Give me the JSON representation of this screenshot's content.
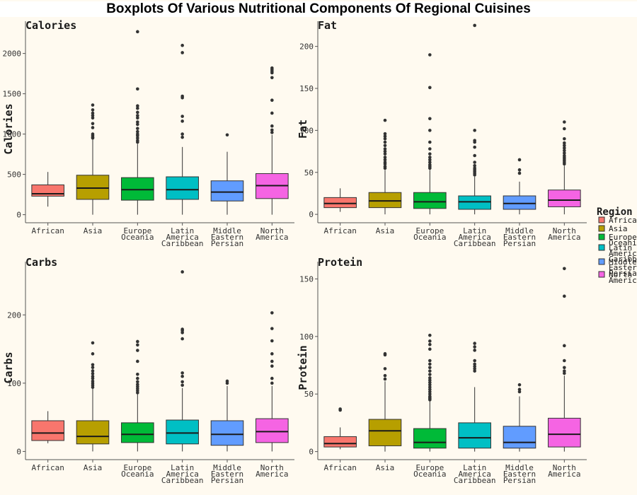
{
  "title": "Boxplots Of Various Nutritional Components Of Regional Cuisines",
  "legend": {
    "title": "Region",
    "placement": "right",
    "items": [
      {
        "label": [
          "African"
        ],
        "color": "#F8766D"
      },
      {
        "label": [
          "Asia"
        ],
        "color": "#B79F00"
      },
      {
        "label": [
          "Europe",
          "Oceania"
        ],
        "color": "#00BA38"
      },
      {
        "label": [
          "Latin",
          "America",
          "Caribbean"
        ],
        "color": "#00BFC4"
      },
      {
        "label": [
          "Middle",
          "Eastern",
          "Persian"
        ],
        "color": "#619CFF"
      },
      {
        "label": [
          "North",
          "America"
        ],
        "color": "#F564E3"
      }
    ]
  },
  "chart_data": [
    {
      "type": "boxplot",
      "title": "Calories",
      "ylabel": "Calories",
      "ylim": [
        -100,
        2400
      ],
      "yticks": [
        0,
        500,
        1000,
        1500,
        2000
      ],
      "categories": [
        [
          "African"
        ],
        [
          "Asia"
        ],
        [
          "Europe",
          "Oceania"
        ],
        [
          "Latin",
          "America",
          "Caribbean"
        ],
        [
          "Middle",
          "Eastern",
          "Persian"
        ],
        [
          "North",
          "America"
        ]
      ],
      "boxes": [
        {
          "min": 100,
          "q1": 230,
          "median": 260,
          "q3": 370,
          "max": 530,
          "outliers": []
        },
        {
          "min": 0,
          "q1": 190,
          "median": 330,
          "q3": 490,
          "max": 930,
          "outliers": [
            950,
            960,
            980,
            1000,
            1080,
            1130,
            1200,
            1230,
            1260,
            1300,
            1360
          ]
        },
        {
          "min": 0,
          "q1": 180,
          "median": 310,
          "q3": 460,
          "max": 880,
          "outliers": [
            900,
            920,
            950,
            980,
            1000,
            1030,
            1070,
            1120,
            1150,
            1200,
            1230,
            1270,
            1320,
            1350,
            1560,
            2270
          ]
        },
        {
          "min": 0,
          "q1": 190,
          "median": 310,
          "q3": 470,
          "max": 840,
          "outliers": [
            960,
            1000,
            1160,
            1220,
            1450,
            1470,
            2010,
            2100
          ]
        },
        {
          "min": 0,
          "q1": 170,
          "median": 280,
          "q3": 420,
          "max": 780,
          "outliers": [
            990
          ]
        },
        {
          "min": 0,
          "q1": 200,
          "median": 360,
          "q3": 510,
          "max": 990,
          "outliers": [
            1020,
            1050,
            1100,
            1260,
            1420,
            1700,
            1760,
            1780,
            1800,
            1820
          ]
        }
      ]
    },
    {
      "type": "boxplot",
      "title": "Fat",
      "ylabel": "Fat",
      "ylim": [
        -10,
        230
      ],
      "yticks": [
        0,
        50,
        100,
        150,
        200
      ],
      "categories": [
        [
          "African"
        ],
        [
          "Asia"
        ],
        [
          "Europe",
          "Oceania"
        ],
        [
          "Latin",
          "America",
          "Caribbean"
        ],
        [
          "Middle",
          "Eastern",
          "Persian"
        ],
        [
          "North",
          "America"
        ]
      ],
      "boxes": [
        {
          "min": 3,
          "q1": 8,
          "median": 13,
          "q3": 20,
          "max": 31,
          "outliers": []
        },
        {
          "min": 0,
          "q1": 8,
          "median": 16,
          "q3": 26,
          "max": 53,
          "outliers": [
            55,
            57,
            60,
            62,
            65,
            68,
            72,
            75,
            78,
            82,
            86,
            90,
            93,
            96,
            112
          ]
        },
        {
          "min": 0,
          "q1": 7,
          "median": 15,
          "q3": 26,
          "max": 53,
          "outliers": [
            55,
            57,
            59,
            62,
            65,
            68,
            72,
            78,
            86,
            100,
            114,
            151,
            190
          ]
        },
        {
          "min": 0,
          "q1": 6,
          "median": 15,
          "q3": 22,
          "max": 45,
          "outliers": [
            47,
            49,
            51,
            53,
            55,
            58,
            62,
            70,
            80,
            86,
            88,
            100,
            225
          ]
        },
        {
          "min": 0,
          "q1": 6,
          "median": 13,
          "q3": 22,
          "max": 39,
          "outliers": [
            49,
            53,
            65
          ]
        },
        {
          "min": 0,
          "q1": 9,
          "median": 17,
          "q3": 29,
          "max": 58,
          "outliers": [
            60,
            62,
            64,
            66,
            68,
            70,
            73,
            76,
            79,
            82,
            85,
            90,
            102,
            110
          ]
        }
      ]
    },
    {
      "type": "boxplot",
      "title": "Carbs",
      "ylabel": "Carbs",
      "ylim": [
        -12,
        278
      ],
      "yticks": [
        0,
        100,
        200
      ],
      "categories": [
        [
          "African"
        ],
        [
          "Asia"
        ],
        [
          "Europe",
          "Oceania"
        ],
        [
          "Latin",
          "America",
          "Caribbean"
        ],
        [
          "Middle",
          "Eastern",
          "Persian"
        ],
        [
          "North",
          "America"
        ]
      ],
      "boxes": [
        {
          "min": 12,
          "q1": 16,
          "median": 27,
          "q3": 45,
          "max": 59,
          "outliers": []
        },
        {
          "min": 0,
          "q1": 11,
          "median": 22,
          "q3": 45,
          "max": 92,
          "outliers": [
            94,
            97,
            100,
            103,
            107,
            110,
            114,
            118,
            123,
            127,
            143,
            159
          ]
        },
        {
          "min": 0,
          "q1": 13,
          "median": 25,
          "q3": 42,
          "max": 84,
          "outliers": [
            86,
            89,
            92,
            95,
            98,
            102,
            107,
            113,
            132,
            148,
            156,
            161
          ]
        },
        {
          "min": 0,
          "q1": 11,
          "median": 27,
          "q3": 46,
          "max": 93,
          "outliers": [
            97,
            102,
            110,
            115,
            165,
            174,
            177,
            179,
            263
          ]
        },
        {
          "min": 0,
          "q1": 9,
          "median": 25,
          "q3": 45,
          "max": 96,
          "outliers": [
            100,
            103
          ]
        },
        {
          "min": 0,
          "q1": 13,
          "median": 29,
          "q3": 48,
          "max": 96,
          "outliers": [
            100,
            107,
            125,
            132,
            143,
            162,
            180,
            203
          ]
        }
      ]
    },
    {
      "type": "boxplot",
      "title": "Protein",
      "ylabel": "Protein",
      "ylim": [
        -7,
        165
      ],
      "yticks": [
        0,
        50,
        100,
        150
      ],
      "categories": [
        [
          "African"
        ],
        [
          "Asia"
        ],
        [
          "Europe",
          "Oceania"
        ],
        [
          "Latin",
          "America",
          "Caribbean"
        ],
        [
          "Middle",
          "Eastern",
          "Persian"
        ],
        [
          "North",
          "America"
        ]
      ],
      "boxes": [
        {
          "min": 2,
          "q1": 4,
          "median": 7,
          "q3": 13,
          "max": 21,
          "outliers": [
            36,
            37
          ]
        },
        {
          "min": 0,
          "q1": 5,
          "median": 18,
          "q3": 28,
          "max": 61,
          "outliers": [
            63,
            66,
            72,
            84,
            85
          ]
        },
        {
          "min": 0,
          "q1": 3,
          "median": 8,
          "q3": 20,
          "max": 44,
          "outliers": [
            45,
            46,
            47,
            48,
            50,
            52,
            54,
            56,
            58,
            60,
            62,
            64,
            67,
            70,
            73,
            76,
            79,
            89,
            93,
            96,
            101
          ]
        },
        {
          "min": 0,
          "q1": 3,
          "median": 12,
          "q3": 25,
          "max": 56,
          "outliers": [
            70,
            72,
            74,
            76,
            79,
            88,
            91,
            94
          ]
        },
        {
          "min": 0,
          "q1": 3,
          "median": 8,
          "q3": 22,
          "max": 48,
          "outliers": [
            52,
            54,
            58
          ]
        },
        {
          "min": 0,
          "q1": 4,
          "median": 15,
          "q3": 29,
          "max": 66,
          "outliers": [
            68,
            70,
            73,
            79,
            92,
            135,
            159
          ]
        }
      ]
    }
  ]
}
